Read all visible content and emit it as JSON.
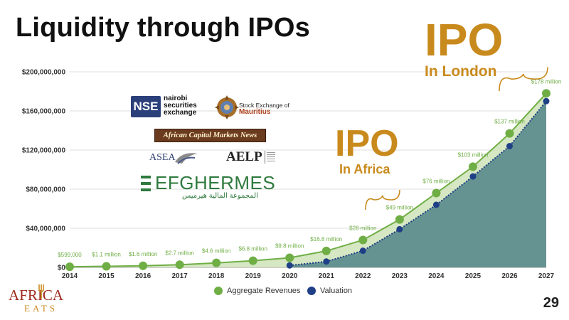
{
  "slide": {
    "title": "Liquidity through IPOs",
    "page_number": "29"
  },
  "annotations": {
    "ipo_london": {
      "big": "IPO",
      "sub": "In London"
    },
    "ipo_africa": {
      "big": "IPO",
      "sub": "In Africa"
    }
  },
  "logos": {
    "nse": {
      "mark": "NSE",
      "line1": "nairobi",
      "line2": "securities",
      "line3": "exchange"
    },
    "sem": {
      "line1": "Stock Exchange of",
      "line2": "Mauritius"
    },
    "acmn": {
      "text": "African Capital Markets News"
    },
    "asea": {
      "text": "ASEA"
    },
    "aelp": {
      "text": "AELP"
    },
    "efg": {
      "text": "EFGHERMES",
      "arabic": "المجموعة المالية هيرميس"
    }
  },
  "brand": {
    "top": "AFRICA",
    "bottom": "EATS"
  },
  "colors": {
    "revenue": "#6fae45",
    "valuation": "#1f3f86",
    "ipo": "#c98a1d",
    "area_valuation": "#5f8e8e",
    "area_revenue": "#cfe3b8"
  },
  "chart_data": {
    "type": "line",
    "x": [
      2014,
      2015,
      2016,
      2017,
      2018,
      2019,
      2020,
      2021,
      2022,
      2023,
      2024,
      2025,
      2026,
      2027
    ],
    "ylim": [
      0,
      200000000
    ],
    "y_ticks": [
      "$0",
      "$40,000,000",
      "$80,000,000",
      "$120,000,000",
      "$160,000,000",
      "$200,000,000"
    ],
    "grid": true,
    "legend_position": "bottom",
    "series": [
      {
        "name": "Aggregate Revenues",
        "values": [
          599000,
          1100000,
          1600000,
          2700000,
          4600000,
          6800000,
          9800000,
          16800000,
          28000000,
          49000000,
          76000000,
          103000000,
          137000000,
          178000000
        ],
        "labels": [
          "$599,000",
          "$1.1 million",
          "$1.6 million",
          "$2.7 million",
          "$4.6 million",
          "$6.8 million",
          "$9.8 million",
          "$16.8 million",
          "$28 million",
          "$49 million",
          "$76 million",
          "$103 million",
          "$137 million",
          "$178 million"
        ]
      },
      {
        "name": "Valuation",
        "x": [
          2020,
          2021,
          2022,
          2023,
          2024,
          2025,
          2026,
          2027
        ],
        "values": [
          2000000,
          6000000,
          17000000,
          39000000,
          64000000,
          93000000,
          124000000,
          170000000
        ]
      }
    ]
  }
}
